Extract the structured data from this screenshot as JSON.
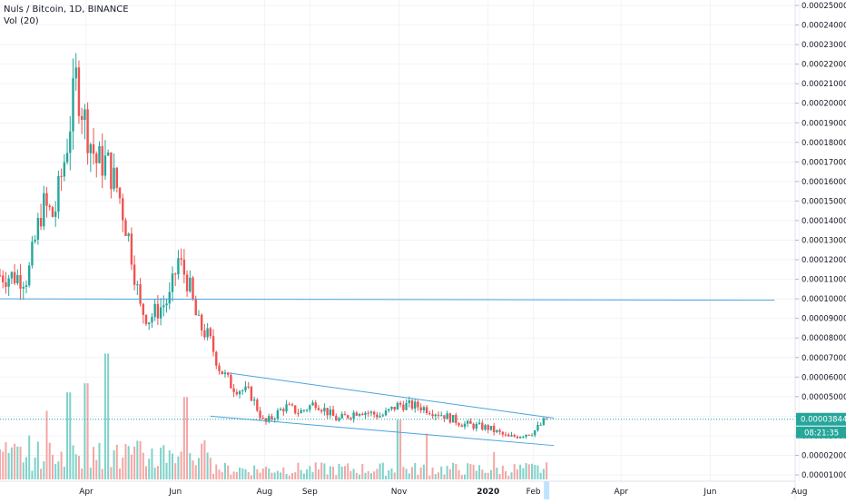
{
  "legend": {
    "symbol_line": "Nuls / Bitcoin, 1D, BINANCE",
    "volume_line": "Vol (20)"
  },
  "price_labels": {
    "last_price": "0.00003844",
    "countdown": "08:21:35"
  },
  "colors": {
    "up": "#26a69a",
    "down": "#ef5350",
    "up_volume": "#7fd2c9",
    "down_volume": "#f4a6a4",
    "trendline": "#4aa3df",
    "axis_text": "#131722",
    "grid": "#f0f3fa",
    "last_price_tag": "#26a69a"
  },
  "chart_data": {
    "type": "candlestick",
    "title": "Nuls / Bitcoin, 1D, BINANCE",
    "y_axis": {
      "min": 1e-05,
      "max": 0.00025,
      "tick_step": 1e-05,
      "ticks": [
        "0.00001000",
        "0.00002000",
        "0.00003000",
        "0.00004000",
        "0.00005000",
        "0.00006000",
        "0.00007000",
        "0.00008000",
        "0.00009000",
        "0.00010000",
        "0.00011000",
        "0.00012000",
        "0.00013000",
        "0.00014000",
        "0.00015000",
        "0.00016000",
        "0.00017000",
        "0.00018000",
        "0.00019000",
        "0.00020000",
        "0.00021000",
        "0.00022000",
        "0.00023000",
        "0.00024000",
        "0.00025000"
      ]
    },
    "x_axis": {
      "ticks": [
        {
          "label": "Apr",
          "date": "2019-04-01"
        },
        {
          "label": "Jun",
          "date": "2019-06-01"
        },
        {
          "label": "Aug",
          "date": "2019-08-01"
        },
        {
          "label": "Sep",
          "date": "2019-09-01"
        },
        {
          "label": "Nov",
          "date": "2019-11-01"
        },
        {
          "label": "2020",
          "date": "2020-01-01"
        },
        {
          "label": "Feb",
          "date": "2020-02-01"
        },
        {
          "label": "Apr",
          "date": "2020-04-01"
        },
        {
          "label": "Jun",
          "date": "2020-06-01"
        },
        {
          "label": "Aug",
          "date": "2020-08-01"
        }
      ]
    },
    "price_path": [
      {
        "date": "2019-02-01",
        "price": 0.000112
      },
      {
        "date": "2019-02-20",
        "price": 0.000111
      },
      {
        "date": "2019-03-02",
        "price": 0.000148
      },
      {
        "date": "2019-03-10",
        "price": 0.000142
      },
      {
        "date": "2019-03-18",
        "price": 0.000175
      },
      {
        "date": "2019-03-25",
        "price": 0.000212
      },
      {
        "date": "2019-04-01",
        "price": 0.000188
      },
      {
        "date": "2019-04-08",
        "price": 0.00017
      },
      {
        "date": "2019-04-15",
        "price": 0.00017
      },
      {
        "date": "2019-04-23",
        "price": 0.000155
      },
      {
        "date": "2019-05-01",
        "price": 0.000128
      },
      {
        "date": "2019-05-08",
        "price": 9.5e-05
      },
      {
        "date": "2019-05-14",
        "price": 9e-05
      },
      {
        "date": "2019-05-28",
        "price": 0.0001
      },
      {
        "date": "2019-06-03",
        "price": 0.00012
      },
      {
        "date": "2019-06-10",
        "price": 0.000108
      },
      {
        "date": "2019-06-16",
        "price": 8.8e-05
      },
      {
        "date": "2019-06-24",
        "price": 8e-05
      },
      {
        "date": "2019-07-01",
        "price": 6.5e-05
      },
      {
        "date": "2019-07-10",
        "price": 5.5e-05
      },
      {
        "date": "2019-07-22",
        "price": 5.2e-05
      },
      {
        "date": "2019-08-01",
        "price": 3.6e-05
      },
      {
        "date": "2019-08-15",
        "price": 4.5e-05
      },
      {
        "date": "2019-08-25",
        "price": 4.2e-05
      },
      {
        "date": "2019-09-05",
        "price": 4.7e-05
      },
      {
        "date": "2019-09-20",
        "price": 3.8e-05
      },
      {
        "date": "2019-10-05",
        "price": 4.3e-05
      },
      {
        "date": "2019-10-20",
        "price": 4e-05
      },
      {
        "date": "2019-11-01",
        "price": 4.6e-05
      },
      {
        "date": "2019-11-15",
        "price": 4.5e-05
      },
      {
        "date": "2019-11-30",
        "price": 4.1e-05
      },
      {
        "date": "2019-12-15",
        "price": 3.6e-05
      },
      {
        "date": "2020-01-01",
        "price": 3.4e-05
      },
      {
        "date": "2020-01-15",
        "price": 2.9e-05
      },
      {
        "date": "2020-02-01",
        "price": 3.2e-05
      },
      {
        "date": "2020-02-10",
        "price": 3.844e-05
      }
    ],
    "volume_spikes": [
      {
        "date": "2019-03-05",
        "volume": 0.3
      },
      {
        "date": "2019-03-20",
        "volume": 0.38
      },
      {
        "date": "2019-04-01",
        "volume": 0.42
      },
      {
        "date": "2019-04-15",
        "volume": 0.55
      },
      {
        "date": "2019-06-08",
        "volume": 0.36
      },
      {
        "date": "2019-11-01",
        "volume": 0.26
      },
      {
        "date": "2019-11-20",
        "volume": 0.2
      },
      {
        "date": "2020-01-05",
        "volume": 0.12
      }
    ],
    "trendlines": [
      {
        "name": "horizontal",
        "from": {
          "date": "2019-02-01",
          "price": 0.0001
        },
        "to": {
          "date": "2020-07-15",
          "price": 9.93e-05
        }
      },
      {
        "name": "upper-channel",
        "from": {
          "date": "2019-07-08",
          "price": 6.2e-05
        },
        "to": {
          "date": "2020-02-15",
          "price": 3.9e-05
        }
      },
      {
        "name": "lower-channel",
        "from": {
          "date": "2019-06-25",
          "price": 4e-05
        },
        "to": {
          "date": "2020-02-15",
          "price": 2.5e-05
        }
      }
    ]
  }
}
